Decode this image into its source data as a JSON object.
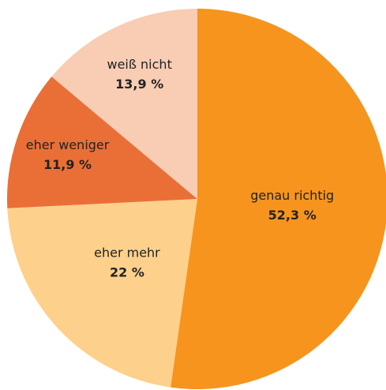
{
  "chart_data": {
    "type": "pie",
    "categories": [
      "genau richtig",
      "eher mehr",
      "eher weniger",
      "weiß nicht"
    ],
    "values": [
      52.3,
      22,
      11.9,
      13.9
    ],
    "value_labels": [
      "52,3 %",
      "22 %",
      "11,9 %",
      "13,9 %"
    ],
    "colors": [
      "#f7941d",
      "#fdd08c",
      "#ea6f37",
      "#f8cdb4"
    ]
  }
}
